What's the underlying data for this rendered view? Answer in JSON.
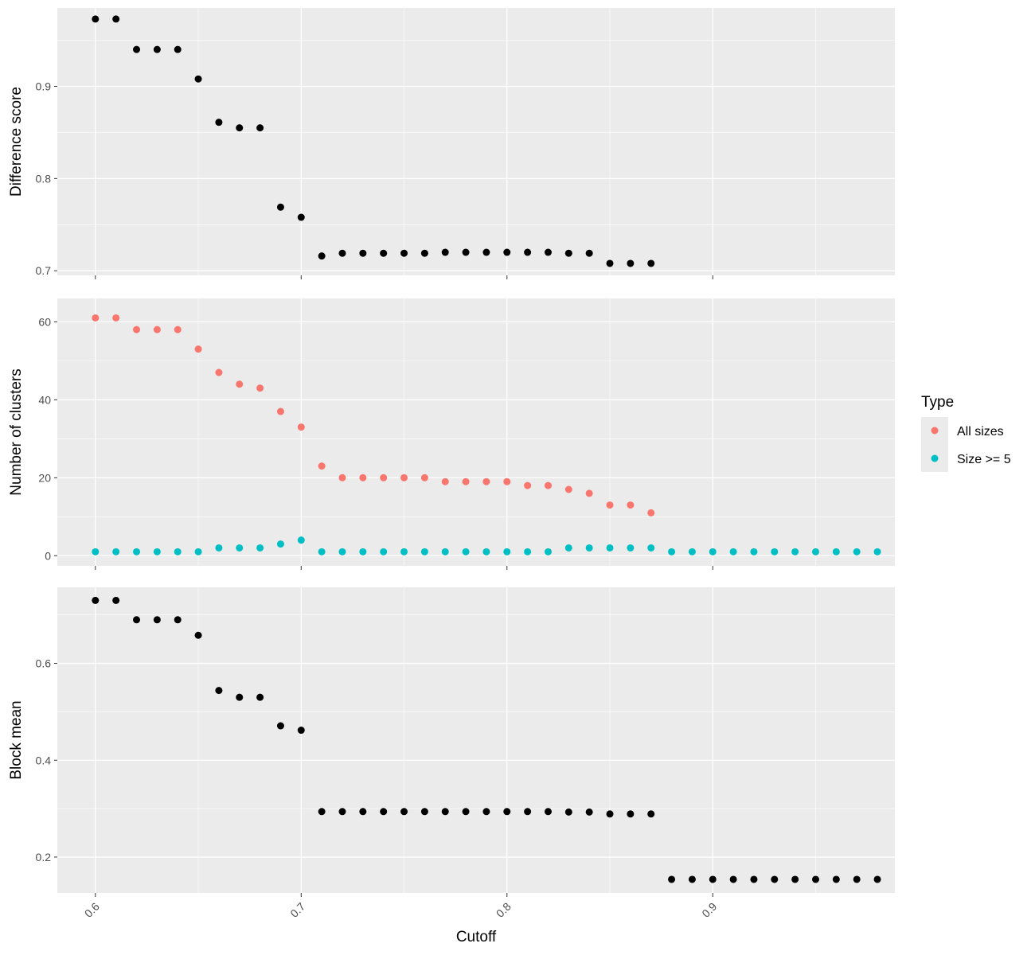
{
  "chart_data": {
    "type": "scatter",
    "x_title": "Cutoff",
    "x_ticks": [
      "0.6",
      "0.7",
      "0.8",
      "0.9"
    ],
    "x_tick_values": [
      0.6,
      0.7,
      0.8,
      0.9
    ],
    "xlim": [
      0.5815,
      0.9885
    ],
    "panels": [
      {
        "ylabel": "Difference score",
        "ylim": [
          0.695,
          0.985
        ],
        "y_ticks": [
          "0.7",
          "0.8",
          "0.9"
        ],
        "y_tick_values": [
          0.7,
          0.8,
          0.9
        ],
        "series": [
          {
            "color": "#000000",
            "x": [
              0.6,
              0.61,
              0.62,
              0.63,
              0.64,
              0.65,
              0.66,
              0.67,
              0.68,
              0.69,
              0.7,
              0.71,
              0.72,
              0.73,
              0.74,
              0.75,
              0.76,
              0.77,
              0.78,
              0.79,
              0.8,
              0.81,
              0.82,
              0.83,
              0.84,
              0.85,
              0.86,
              0.87
            ],
            "y": [
              0.973,
              0.973,
              0.94,
              0.94,
              0.94,
              0.908,
              0.861,
              0.855,
              0.855,
              0.769,
              0.758,
              0.716,
              0.719,
              0.719,
              0.719,
              0.719,
              0.719,
              0.72,
              0.72,
              0.72,
              0.72,
              0.72,
              0.72,
              0.719,
              0.719,
              0.708,
              0.708,
              0.708
            ]
          }
        ]
      },
      {
        "ylabel": "Number of clusters",
        "ylim": [
          -2.6,
          66.0
        ],
        "y_ticks": [
          "0",
          "20",
          "40",
          "60"
        ],
        "y_tick_values": [
          0,
          20,
          40,
          60
        ],
        "series": [
          {
            "name": "All sizes",
            "color": "#F8766D",
            "x": [
              0.6,
              0.61,
              0.62,
              0.63,
              0.64,
              0.65,
              0.66,
              0.67,
              0.68,
              0.69,
              0.7,
              0.71,
              0.72,
              0.73,
              0.74,
              0.75,
              0.76,
              0.77,
              0.78,
              0.79,
              0.8,
              0.81,
              0.82,
              0.83,
              0.84,
              0.85,
              0.86,
              0.87
            ],
            "y": [
              61,
              61,
              58,
              58,
              58,
              53,
              47,
              44,
              43,
              37,
              33,
              23,
              20,
              20,
              20,
              20,
              20,
              19,
              19,
              19,
              19,
              18,
              18,
              17,
              16,
              13,
              13,
              11
            ]
          },
          {
            "name": "Size >= 5",
            "color": "#00BFC4",
            "x": [
              0.6,
              0.61,
              0.62,
              0.63,
              0.64,
              0.65,
              0.66,
              0.67,
              0.68,
              0.69,
              0.7,
              0.71,
              0.72,
              0.73,
              0.74,
              0.75,
              0.76,
              0.77,
              0.78,
              0.79,
              0.8,
              0.81,
              0.82,
              0.83,
              0.84,
              0.85,
              0.86,
              0.87,
              0.88,
              0.89,
              0.9,
              0.91,
              0.92,
              0.93,
              0.94,
              0.95,
              0.96,
              0.97,
              0.98
            ],
            "y": [
              1,
              1,
              1,
              1,
              1,
              1,
              2,
              2,
              2,
              3,
              4,
              1,
              1,
              1,
              1,
              1,
              1,
              1,
              1,
              1,
              1,
              1,
              1,
              2,
              2,
              2,
              2,
              2,
              1,
              1,
              1,
              1,
              1,
              1,
              1,
              1,
              1,
              1,
              1
            ]
          }
        ]
      },
      {
        "ylabel": "Block mean",
        "ylim": [
          0.126,
          0.757
        ],
        "y_ticks": [
          "0.2",
          "0.4",
          "0.6"
        ],
        "y_tick_values": [
          0.2,
          0.4,
          0.6
        ],
        "series": [
          {
            "color": "#000000",
            "x": [
              0.6,
              0.61,
              0.62,
              0.63,
              0.64,
              0.65,
              0.66,
              0.67,
              0.68,
              0.69,
              0.7,
              0.71,
              0.72,
              0.73,
              0.74,
              0.75,
              0.76,
              0.77,
              0.78,
              0.79,
              0.8,
              0.81,
              0.82,
              0.83,
              0.84,
              0.85,
              0.86,
              0.87,
              0.88,
              0.89,
              0.9,
              0.91,
              0.92,
              0.93,
              0.94,
              0.95,
              0.96,
              0.97,
              0.98
            ],
            "y": [
              0.73,
              0.73,
              0.69,
              0.69,
              0.69,
              0.658,
              0.544,
              0.53,
              0.53,
              0.471,
              0.462,
              0.294,
              0.294,
              0.294,
              0.294,
              0.294,
              0.294,
              0.294,
              0.294,
              0.294,
              0.294,
              0.294,
              0.294,
              0.293,
              0.293,
              0.289,
              0.289,
              0.289,
              0.154,
              0.154,
              0.154,
              0.154,
              0.154,
              0.154,
              0.154,
              0.154,
              0.154,
              0.154,
              0.154
            ]
          }
        ]
      }
    ],
    "legend": {
      "title": "Type",
      "position": "right",
      "entries": [
        {
          "label": "All sizes",
          "color": "#F8766D"
        },
        {
          "label": "Size >= 5",
          "color": "#00BFC4"
        }
      ]
    },
    "grid": true,
    "background": "#EBEBEB"
  }
}
